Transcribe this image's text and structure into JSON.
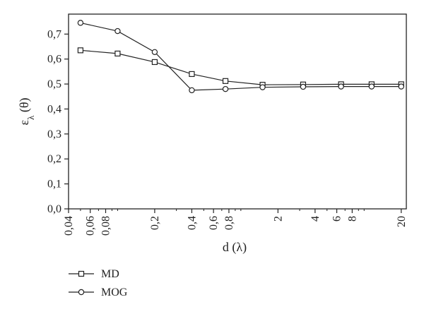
{
  "chart_data": {
    "type": "line",
    "title": "",
    "xlabel": "d (λ)",
    "ylabel": "ελ (θ)",
    "x_scale": "log",
    "xlim": [
      0.04,
      22
    ],
    "ylim": [
      0.0,
      0.78
    ],
    "grid": false,
    "legend_position": "bottom-left",
    "x_ticks": [
      {
        "value": 0.04,
        "label": "0,04"
      },
      {
        "value": 0.06,
        "label": "0,06"
      },
      {
        "value": 0.08,
        "label": "0,08"
      },
      {
        "value": 0.2,
        "label": "0,2"
      },
      {
        "value": 0.4,
        "label": "0,4"
      },
      {
        "value": 0.6,
        "label": "0,6"
      },
      {
        "value": 0.8,
        "label": "0,8"
      },
      {
        "value": 2,
        "label": "2"
      },
      {
        "value": 4,
        "label": "4"
      },
      {
        "value": 6,
        "label": "6"
      },
      {
        "value": 8,
        "label": "8"
      },
      {
        "value": 20,
        "label": "20"
      }
    ],
    "x_minor_ticks": [
      0.05,
      0.07,
      0.09,
      0.1,
      0.3,
      0.5,
      0.7,
      0.9,
      1,
      3,
      5,
      7,
      9,
      10
    ],
    "y_ticks": [
      {
        "value": 0.0,
        "label": "0,0"
      },
      {
        "value": 0.1,
        "label": "0,1"
      },
      {
        "value": 0.2,
        "label": "0,2"
      },
      {
        "value": 0.3,
        "label": "0,3"
      },
      {
        "value": 0.4,
        "label": "0,4"
      },
      {
        "value": 0.5,
        "label": "0,5"
      },
      {
        "value": 0.6,
        "label": "0,6"
      },
      {
        "value": 0.7,
        "label": "0,7"
      }
    ],
    "series": [
      {
        "name": "MD",
        "marker": "square",
        "color": "#222222",
        "points": [
          {
            "x": 0.05,
            "y": 0.635
          },
          {
            "x": 0.1,
            "y": 0.622
          },
          {
            "x": 0.2,
            "y": 0.588
          },
          {
            "x": 0.4,
            "y": 0.54
          },
          {
            "x": 0.75,
            "y": 0.512
          },
          {
            "x": 1.5,
            "y": 0.497
          },
          {
            "x": 3.2,
            "y": 0.498
          },
          {
            "x": 6.5,
            "y": 0.499
          },
          {
            "x": 11.5,
            "y": 0.499
          },
          {
            "x": 20,
            "y": 0.499
          }
        ]
      },
      {
        "name": "MOG",
        "marker": "circle",
        "color": "#222222",
        "points": [
          {
            "x": 0.05,
            "y": 0.745
          },
          {
            "x": 0.1,
            "y": 0.712
          },
          {
            "x": 0.2,
            "y": 0.628
          },
          {
            "x": 0.4,
            "y": 0.475
          },
          {
            "x": 0.75,
            "y": 0.48
          },
          {
            "x": 1.5,
            "y": 0.487
          },
          {
            "x": 3.2,
            "y": 0.489
          },
          {
            "x": 6.5,
            "y": 0.49
          },
          {
            "x": 11.5,
            "y": 0.49
          },
          {
            "x": 20,
            "y": 0.49
          }
        ]
      }
    ]
  }
}
